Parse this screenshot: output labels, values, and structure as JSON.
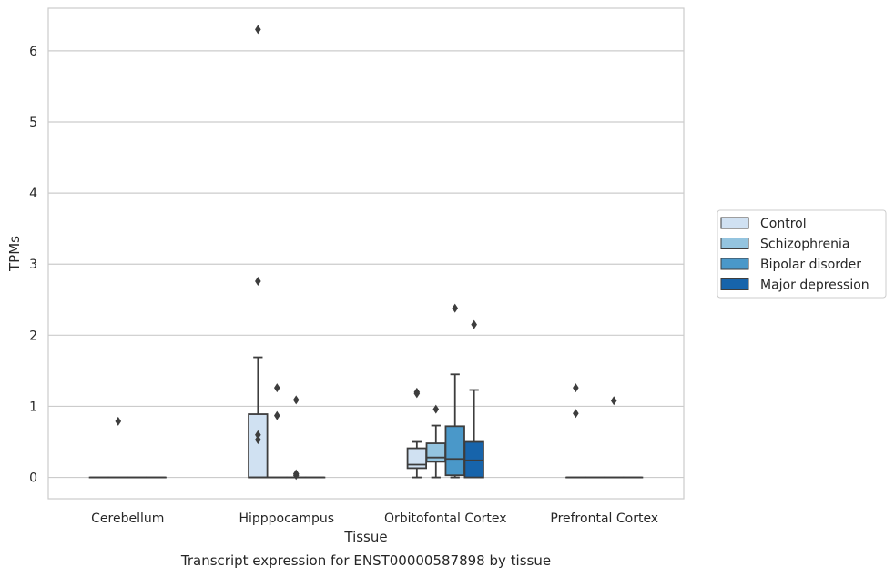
{
  "chart_data": {
    "type": "box",
    "xlabel": "Tissue",
    "ylabel": "TPMs",
    "caption": "Transcript expression for ENST00000587898 by tissue",
    "categories": [
      "Cerebellum",
      "Hipppocampus",
      "Orbitofontal Cortex",
      "Prefrontal Cortex"
    ],
    "ylim": [
      -0.3,
      6.6
    ],
    "yticks": [
      0,
      1,
      2,
      3,
      4,
      5,
      6
    ],
    "grid": "horizontal",
    "legend_position": "right",
    "series": [
      {
        "name": "Control",
        "color": "#d0e1f2",
        "boxes": [
          {
            "q1": 0,
            "median": 0,
            "q3": 0,
            "whisker_low": 0,
            "whisker_high": 0,
            "outliers": []
          },
          {
            "q1": 0,
            "median": 0,
            "q3": 0.89,
            "whisker_low": 0,
            "whisker_high": 1.69,
            "outliers": [
              6.3,
              2.76,
              0.6,
              0.53
            ]
          },
          {
            "q1": 0.13,
            "median": 0.18,
            "q3": 0.41,
            "whisker_low": 0,
            "whisker_high": 0.5,
            "outliers": [
              1.2,
              1.18
            ]
          },
          {
            "q1": 0,
            "median": 0,
            "q3": 0,
            "whisker_low": 0,
            "whisker_high": 0,
            "outliers": [
              1.26,
              0.9
            ]
          }
        ]
      },
      {
        "name": "Schizophrenia",
        "color": "#94c4df",
        "boxes": [
          {
            "q1": 0,
            "median": 0,
            "q3": 0,
            "whisker_low": 0,
            "whisker_high": 0,
            "outliers": [
              0.79
            ]
          },
          {
            "q1": 0,
            "median": 0,
            "q3": 0,
            "whisker_low": 0,
            "whisker_high": 0,
            "outliers": [
              1.26,
              0.87
            ]
          },
          {
            "q1": 0.22,
            "median": 0.28,
            "q3": 0.48,
            "whisker_low": 0,
            "whisker_high": 0.73,
            "outliers": [
              0.96
            ]
          },
          {
            "q1": 0,
            "median": 0,
            "q3": 0,
            "whisker_low": 0,
            "whisker_high": 0,
            "outliers": []
          }
        ]
      },
      {
        "name": "Bipolar disorder",
        "color": "#4a98c9",
        "boxes": [
          {
            "q1": 0,
            "median": 0,
            "q3": 0,
            "whisker_low": 0,
            "whisker_high": 0,
            "outliers": []
          },
          {
            "q1": 0,
            "median": 0,
            "q3": 0,
            "whisker_low": 0,
            "whisker_high": 0,
            "outliers": [
              1.09,
              0.05,
              0.03
            ]
          },
          {
            "q1": 0.03,
            "median": 0.26,
            "q3": 0.72,
            "whisker_low": 0,
            "whisker_high": 1.45,
            "outliers": [
              2.38
            ]
          },
          {
            "q1": 0,
            "median": 0,
            "q3": 0,
            "whisker_low": 0,
            "whisker_high": 0,
            "outliers": [
              1.08
            ]
          }
        ]
      },
      {
        "name": "Major depression",
        "color": "#1764ab",
        "boxes": [
          {
            "q1": 0,
            "median": 0,
            "q3": 0,
            "whisker_low": 0,
            "whisker_high": 0,
            "outliers": []
          },
          {
            "q1": 0,
            "median": 0,
            "q3": 0,
            "whisker_low": 0,
            "whisker_high": 0,
            "outliers": []
          },
          {
            "q1": 0,
            "median": 0.24,
            "q3": 0.5,
            "whisker_low": 0,
            "whisker_high": 1.23,
            "outliers": [
              2.15
            ]
          },
          {
            "q1": 0,
            "median": 0,
            "q3": 0,
            "whisker_low": 0,
            "whisker_high": 0,
            "outliers": []
          }
        ]
      }
    ]
  }
}
